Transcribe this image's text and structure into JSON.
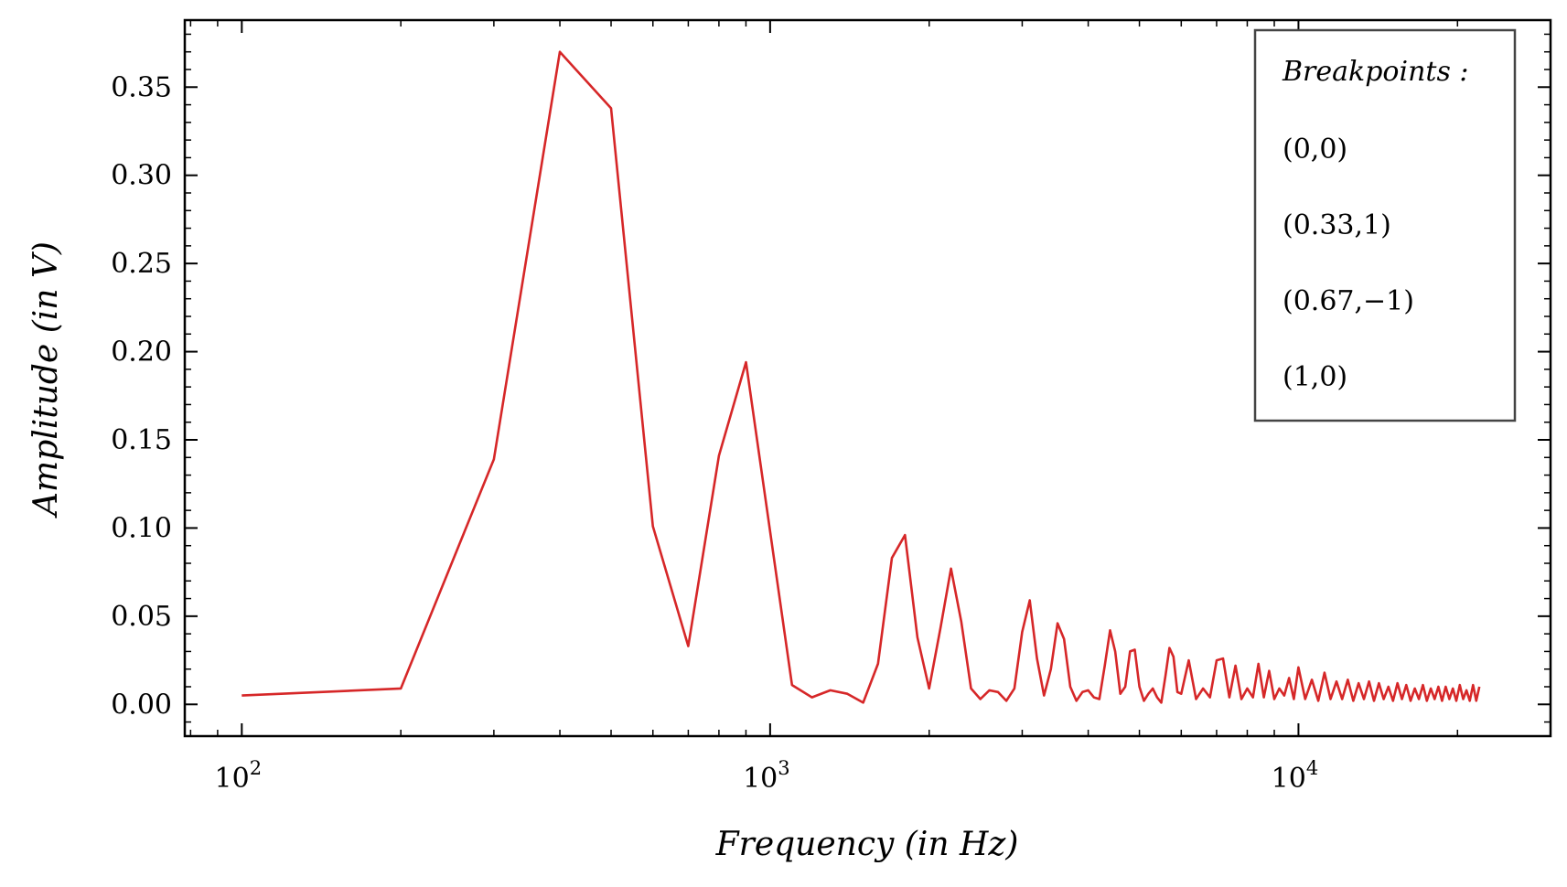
{
  "chart_data": {
    "type": "line",
    "xlabel": "Frequency (in Hz)",
    "ylabel": "Amplitude (in V)",
    "xscale": "log",
    "xlim": [
      78,
      30000
    ],
    "ylim": [
      -0.018,
      0.388
    ],
    "x_ticks": [
      {
        "value": 100,
        "base": "10",
        "exp": "2"
      },
      {
        "value": 1000,
        "base": "10",
        "exp": "3"
      },
      {
        "value": 10000,
        "base": "10",
        "exp": "4"
      }
    ],
    "y_ticks": [
      "0.00",
      "0.05",
      "0.10",
      "0.15",
      "0.20",
      "0.25",
      "0.30",
      "0.35"
    ],
    "grid": false,
    "line_color": "#d62728",
    "legend": {
      "placement": "top-right",
      "title": "Breakpoints :",
      "entries": [
        "(0,0)",
        "(0.33,1)",
        "(0.67,−1)",
        "(1,0)"
      ]
    },
    "series": [
      {
        "x": [
          100,
          200,
          300,
          400,
          500,
          600,
          700,
          800,
          900,
          1100,
          1200,
          1300,
          1400,
          1500,
          1600,
          1700,
          1800,
          1900,
          2000,
          2100,
          2200,
          2300,
          2400,
          2500,
          2600,
          2700,
          2800,
          2900,
          3000,
          3100,
          3200,
          3300,
          3400,
          3500,
          3600,
          3700,
          3800,
          3900,
          4000,
          4100,
          4200,
          4300,
          4400,
          4500,
          4600,
          4700,
          4800,
          4900,
          5000,
          5100,
          5200,
          5300,
          5400,
          5500,
          5600,
          5700,
          5800,
          5900,
          6000,
          6200,
          6400,
          6600,
          6800,
          7000,
          7200,
          7400,
          7600,
          7800,
          8000,
          8200,
          8400,
          8600,
          8800,
          9000,
          9200,
          9400,
          9600,
          9800,
          10000,
          10300,
          10600,
          10900,
          11200,
          11500,
          11800,
          12100,
          12400,
          12700,
          13000,
          13300,
          13600,
          13900,
          14200,
          14500,
          14800,
          15100,
          15400,
          15700,
          16000,
          16300,
          16600,
          16900,
          17200,
          17500,
          17800,
          18100,
          18400,
          18700,
          19000,
          19300,
          19600,
          19900,
          20200,
          20500,
          20800,
          21100,
          21400,
          21700,
          22000
        ],
        "y": [
          0.005,
          0.009,
          0.139,
          0.37,
          0.338,
          0.101,
          0.033,
          0.141,
          0.194,
          0.011,
          0.004,
          0.008,
          0.006,
          0.001,
          0.023,
          0.083,
          0.096,
          0.038,
          0.009,
          0.043,
          0.077,
          0.047,
          0.009,
          0.003,
          0.008,
          0.007,
          0.002,
          0.009,
          0.041,
          0.059,
          0.026,
          0.005,
          0.02,
          0.046,
          0.037,
          0.01,
          0.002,
          0.007,
          0.008,
          0.004,
          0.003,
          0.022,
          0.042,
          0.03,
          0.006,
          0.01,
          0.03,
          0.031,
          0.01,
          0.002,
          0.006,
          0.009,
          0.004,
          0.001,
          0.016,
          0.032,
          0.027,
          0.007,
          0.006,
          0.025,
          0.003,
          0.009,
          0.004,
          0.025,
          0.026,
          0.004,
          0.022,
          0.003,
          0.009,
          0.004,
          0.023,
          0.004,
          0.019,
          0.003,
          0.009,
          0.005,
          0.015,
          0.003,
          0.021,
          0.003,
          0.014,
          0.002,
          0.018,
          0.003,
          0.013,
          0.003,
          0.014,
          0.002,
          0.012,
          0.003,
          0.013,
          0.002,
          0.012,
          0.003,
          0.01,
          0.002,
          0.012,
          0.003,
          0.011,
          0.002,
          0.009,
          0.003,
          0.011,
          0.002,
          0.009,
          0.003,
          0.01,
          0.002,
          0.01,
          0.003,
          0.009,
          0.002,
          0.011,
          0.003,
          0.008,
          0.002,
          0.011,
          0.002,
          0.01
        ]
      }
    ]
  }
}
